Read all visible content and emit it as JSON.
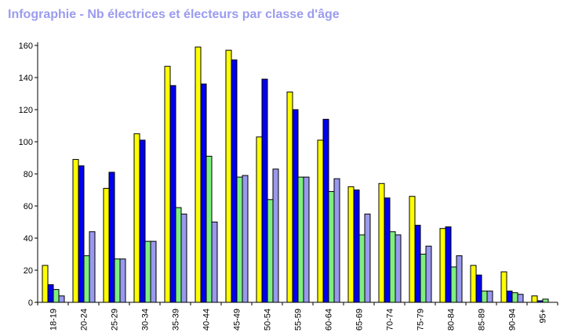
{
  "chart_data": {
    "type": "bar",
    "title": "Infographie - Nb électrices et électeurs par classe d'âge",
    "categories": [
      "18-19",
      "20-24",
      "25-29",
      "30-34",
      "35-39",
      "40-44",
      "45-49",
      "50-54",
      "55-59",
      "60-64",
      "65-69",
      "70-74",
      "75-79",
      "80-84",
      "85-89",
      "90-94",
      "95+"
    ],
    "series": [
      {
        "color": "#ffff00",
        "values": [
          23,
          89,
          71,
          105,
          147,
          159,
          157,
          103,
          131,
          101,
          72,
          74,
          66,
          46,
          23,
          19,
          4
        ]
      },
      {
        "color": "#0000ee",
        "values": [
          11,
          85,
          81,
          101,
          135,
          136,
          151,
          139,
          120,
          114,
          70,
          65,
          48,
          47,
          17,
          7,
          1
        ]
      },
      {
        "color": "#7ff07f",
        "values": [
          8,
          29,
          27,
          38,
          59,
          91,
          78,
          64,
          78,
          69,
          42,
          44,
          30,
          22,
          7,
          6,
          2
        ]
      },
      {
        "color": "#9999ee",
        "values": [
          4,
          44,
          27,
          38,
          55,
          50,
          79,
          83,
          78,
          77,
          55,
          42,
          35,
          29,
          7,
          5,
          0
        ]
      }
    ],
    "ylim": [
      0,
      160
    ],
    "yticks": [
      0,
      20,
      40,
      60,
      80,
      100,
      120,
      140,
      160
    ],
    "grid": false,
    "legend": "none"
  }
}
